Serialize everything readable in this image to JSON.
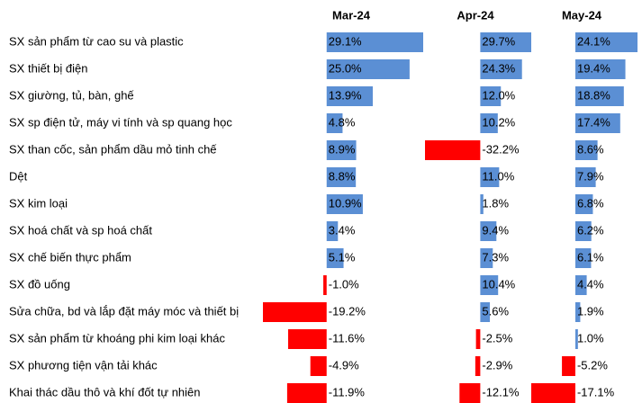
{
  "chart_data": {
    "type": "bar",
    "orientation": "horizontal",
    "categories": [
      "SX sản phẩm từ cao su và plastic",
      "SX thiết bị điện",
      "SX giường, tủ, bàn, ghế",
      "SX sp điện tử, máy vi tính và sp quang học",
      "SX than cốc, sản phẩm dầu mỏ tinh chế",
      "Dệt",
      "SX kim loại",
      "SX hoá chất và sp hoá chất",
      "SX chế biến thực phẩm",
      "SX đồ uống",
      "Sửa chữa, bd và lắp đặt máy móc và thiết bị",
      "SX sản phẩm từ khoáng phi kim loại khác",
      "SX phương tiện vận tải khác",
      "Khai thác dầu thô và khí đốt tự nhiên"
    ],
    "colors": {
      "positive": "#5b8fd4",
      "negative": "#ff0000"
    },
    "series": [
      {
        "name": "Mar-24",
        "values": [
          29.1,
          25.0,
          13.9,
          4.8,
          8.9,
          8.8,
          10.9,
          3.4,
          5.1,
          -1.0,
          -19.2,
          -11.6,
          -4.9,
          -11.9
        ],
        "value_labels": [
          "29.1%",
          "25.0%",
          "13.9%",
          "4.8%",
          "8.9%",
          "8.8%",
          "10.9%",
          "3.4%",
          "5.1%",
          "-1.0%",
          "-19.2%",
          "-11.6%",
          "-4.9%",
          "-11.9%"
        ]
      },
      {
        "name": "Apr-24",
        "values": [
          29.7,
          24.3,
          12.0,
          10.2,
          -32.2,
          11.0,
          1.8,
          9.4,
          7.3,
          10.4,
          5.6,
          -2.5,
          -2.9,
          -12.1
        ],
        "value_labels": [
          "29.7%",
          "24.3%",
          "12.0%",
          "10.2%",
          "-32.2%",
          "11.0%",
          "1.8%",
          "9.4%",
          "7.3%",
          "10.4%",
          "5.6%",
          "-2.5%",
          "-2.9%",
          "-12.1%"
        ]
      },
      {
        "name": "May-24",
        "values": [
          24.1,
          19.4,
          18.8,
          17.4,
          8.6,
          7.9,
          6.8,
          6.2,
          6.1,
          4.4,
          1.9,
          1.0,
          -5.2,
          -17.1
        ],
        "value_labels": [
          "24.1%",
          "19.4%",
          "18.8%",
          "17.4%",
          "8.6%",
          "7.9%",
          "6.8%",
          "6.2%",
          "6.1%",
          "4.4%",
          "1.9%",
          "1.0%",
          "-5.2%",
          "-17.1%"
        ]
      }
    ]
  }
}
